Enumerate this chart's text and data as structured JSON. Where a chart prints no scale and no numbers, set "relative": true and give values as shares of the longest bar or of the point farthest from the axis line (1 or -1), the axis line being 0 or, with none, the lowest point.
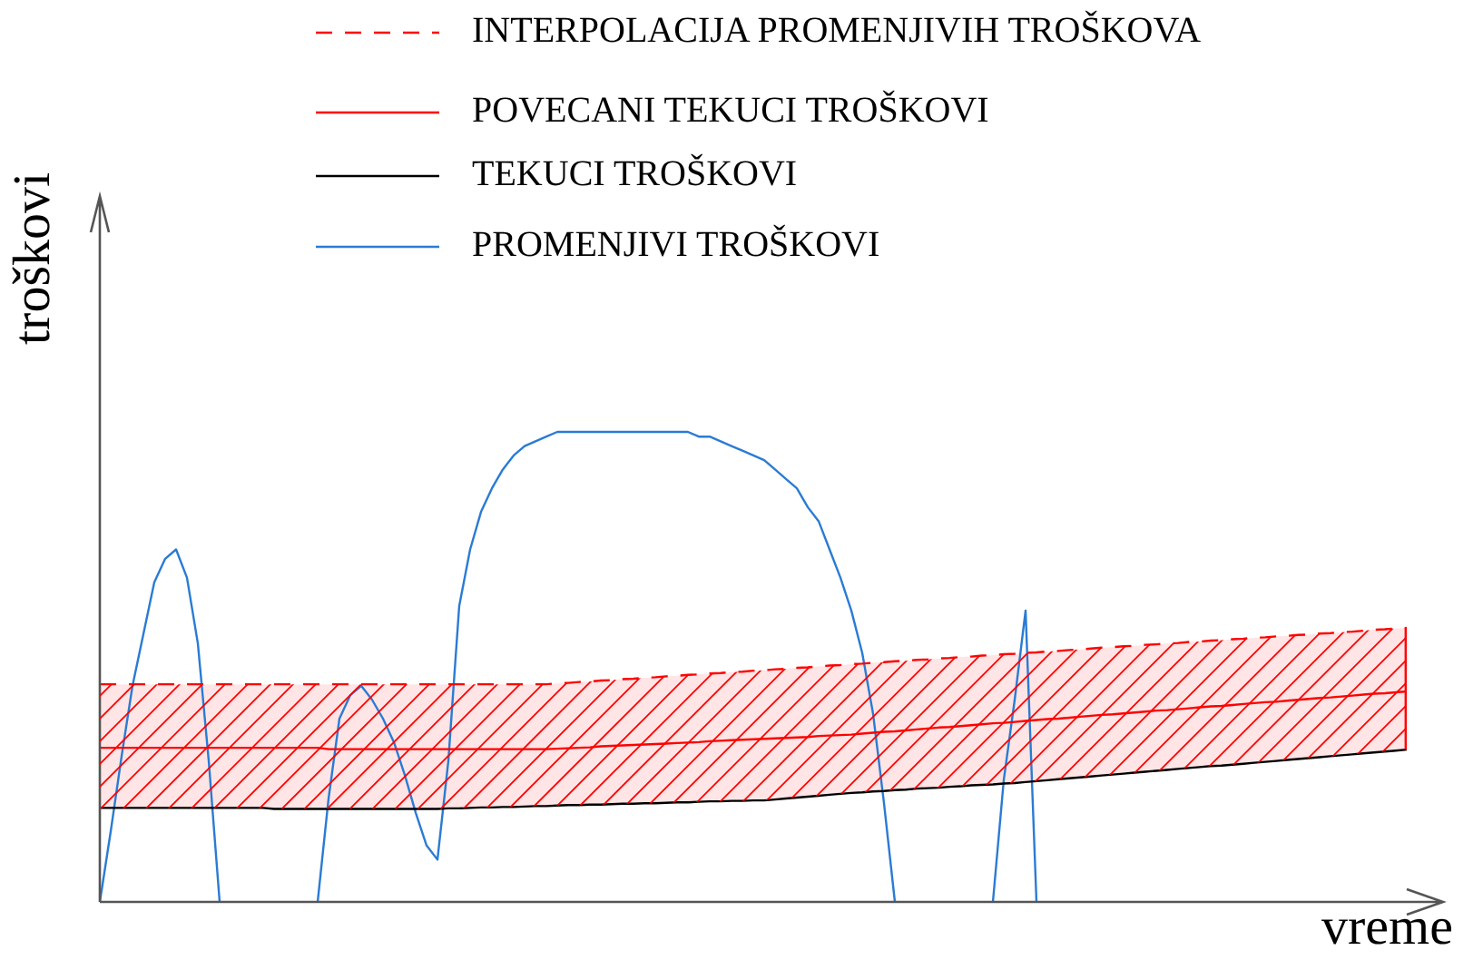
{
  "chart_data": {
    "type": "line",
    "relative": true,
    "xlabel": "vreme",
    "ylabel": "troškovi",
    "legend": "top",
    "marker": "none",
    "categories": [
      null,
      null,
      null,
      null,
      null,
      null,
      null,
      null,
      null,
      null,
      null,
      null,
      null,
      null,
      null,
      null,
      null,
      null,
      null,
      null,
      null,
      null,
      null,
      null,
      null,
      null,
      null,
      null,
      null,
      null,
      null,
      null,
      null,
      null,
      null,
      null,
      null,
      null,
      null,
      null,
      null,
      null,
      null,
      null,
      null,
      null,
      null,
      null,
      null,
      null,
      null,
      null,
      null,
      null,
      null,
      null,
      null,
      null,
      null,
      null,
      null,
      null,
      null,
      null,
      null,
      null,
      null,
      null,
      null,
      null,
      null,
      null,
      null,
      null,
      null,
      null,
      null,
      null,
      null,
      null,
      null,
      null,
      null,
      null,
      null,
      null,
      null,
      null,
      null,
      null,
      null,
      null,
      null,
      null,
      null,
      null,
      null,
      null,
      null,
      null,
      null,
      null,
      null,
      null,
      null,
      null,
      null,
      null,
      null,
      null,
      null,
      null,
      null,
      null,
      null,
      null,
      null,
      null,
      null,
      null,
      null
    ],
    "series": [
      {
        "name": "INTERPOLACIJA PROMENJIVIH TROŠKOVA",
        "color": "#ff0000",
        "line_style": "dashed",
        "values": [
          0.463,
          0.463,
          0.463,
          0.463,
          0.463,
          0.463,
          0.463,
          0.463,
          0.463,
          0.463,
          0.463,
          0.463,
          0.463,
          0.463,
          0.463,
          0.463,
          0.463,
          0.463,
          0.463,
          0.463,
          0.463,
          0.463,
          0.463,
          0.463,
          0.463,
          0.463,
          0.463,
          0.463,
          0.463,
          0.463,
          0.463,
          0.463,
          0.463,
          0.463,
          0.463,
          0.463,
          0.463,
          0.463,
          0.463,
          0.463,
          0.463,
          0.463,
          0.465,
          0.466,
          0.468,
          0.469,
          0.471,
          0.472,
          0.474,
          0.475,
          0.477,
          0.478,
          0.48,
          0.481,
          0.483,
          0.484,
          0.486,
          0.487,
          0.489,
          0.49,
          0.492,
          0.493,
          0.495,
          0.496,
          0.498,
          0.499,
          0.501,
          0.503,
          0.504,
          0.506,
          0.507,
          0.509,
          0.51,
          0.512,
          0.513,
          0.515,
          0.516,
          0.518,
          0.519,
          0.521,
          0.522,
          0.524,
          0.525,
          0.527,
          0.528,
          0.53,
          0.531,
          0.533,
          0.534,
          0.536,
          0.537,
          0.539,
          0.541,
          0.542,
          0.544,
          0.545,
          0.547,
          0.548,
          0.55,
          0.551,
          0.553,
          0.554,
          0.556,
          0.557,
          0.559,
          0.56,
          0.562,
          0.563,
          0.565,
          0.566,
          0.568,
          0.569,
          0.571,
          0.572,
          0.574,
          0.575,
          0.577,
          0.579,
          0.58,
          0.582,
          0.583
        ],
        "lower": [
          0.2,
          0.2,
          0.2,
          0.2,
          0.2,
          0.2,
          0.2,
          0.2,
          0.2,
          0.2,
          0.2,
          0.2,
          0.2,
          0.2,
          0.2,
          0.2,
          0.198,
          0.198,
          0.198,
          0.198,
          0.198,
          0.198,
          0.198,
          0.198,
          0.198,
          0.198,
          0.198,
          0.198,
          0.198,
          0.198,
          0.198,
          0.198,
          0.199,
          0.199,
          0.2,
          0.201,
          0.201,
          0.202,
          0.202,
          0.203,
          0.204,
          0.204,
          0.205,
          0.206,
          0.206,
          0.207,
          0.207,
          0.208,
          0.209,
          0.209,
          0.21,
          0.21,
          0.211,
          0.212,
          0.212,
          0.213,
          0.214,
          0.214,
          0.215,
          0.215,
          0.216,
          0.216,
          0.218,
          0.22,
          0.222,
          0.224,
          0.226,
          0.228,
          0.23,
          0.232,
          0.233,
          0.235,
          0.236,
          0.238,
          0.239,
          0.241,
          0.242,
          0.243,
          0.245,
          0.246,
          0.248,
          0.249,
          0.25,
          0.252,
          0.253,
          0.255,
          0.257,
          0.259,
          0.261,
          0.263,
          0.265,
          0.267,
          0.269,
          0.271,
          0.273,
          0.275,
          0.277,
          0.279,
          0.281,
          0.283,
          0.285,
          0.287,
          0.289,
          0.29,
          0.292,
          0.294,
          0.296,
          0.298,
          0.3,
          0.302,
          0.304,
          0.306,
          0.308,
          0.31,
          0.312,
          0.314,
          0.316,
          0.318,
          0.32,
          0.322,
          0.324
        ],
        "upper": [
          0.463,
          0.463,
          0.463,
          0.463,
          0.463,
          0.463,
          0.463,
          0.463,
          0.463,
          0.463,
          0.463,
          0.463,
          0.463,
          0.463,
          0.463,
          0.463,
          0.463,
          0.463,
          0.463,
          0.463,
          0.463,
          0.463,
          0.463,
          0.463,
          0.463,
          0.463,
          0.463,
          0.463,
          0.463,
          0.463,
          0.463,
          0.463,
          0.463,
          0.463,
          0.463,
          0.463,
          0.463,
          0.463,
          0.463,
          0.463,
          0.463,
          0.463,
          0.465,
          0.466,
          0.468,
          0.469,
          0.471,
          0.472,
          0.474,
          0.475,
          0.477,
          0.478,
          0.48,
          0.481,
          0.483,
          0.484,
          0.486,
          0.487,
          0.489,
          0.49,
          0.492,
          0.493,
          0.495,
          0.496,
          0.498,
          0.499,
          0.501,
          0.503,
          0.504,
          0.506,
          0.507,
          0.509,
          0.51,
          0.512,
          0.513,
          0.515,
          0.516,
          0.518,
          0.519,
          0.521,
          0.522,
          0.524,
          0.525,
          0.527,
          0.528,
          0.53,
          0.531,
          0.533,
          0.534,
          0.536,
          0.537,
          0.539,
          0.541,
          0.542,
          0.544,
          0.545,
          0.547,
          0.548,
          0.55,
          0.551,
          0.553,
          0.554,
          0.556,
          0.557,
          0.559,
          0.56,
          0.562,
          0.563,
          0.565,
          0.566,
          0.568,
          0.569,
          0.571,
          0.572,
          0.574,
          0.575,
          0.577,
          0.579,
          0.58,
          0.582,
          0.583
        ]
      },
      {
        "name": "POVECANI TEKUCI TROŠKOVI",
        "color": "#ff0000",
        "values": [
          0.328,
          0.328,
          0.328,
          0.328,
          0.328,
          0.328,
          0.328,
          0.328,
          0.328,
          0.328,
          0.328,
          0.328,
          0.328,
          0.328,
          0.328,
          0.328,
          0.328,
          0.328,
          0.328,
          0.328,
          0.328,
          0.325,
          0.325,
          0.325,
          0.325,
          0.325,
          0.325,
          0.325,
          0.325,
          0.325,
          0.325,
          0.325,
          0.325,
          0.325,
          0.325,
          0.325,
          0.325,
          0.325,
          0.325,
          0.325,
          0.325,
          0.325,
          0.326,
          0.327,
          0.328,
          0.329,
          0.331,
          0.332,
          0.333,
          0.334,
          0.335,
          0.336,
          0.337,
          0.338,
          0.339,
          0.34,
          0.342,
          0.343,
          0.344,
          0.345,
          0.346,
          0.347,
          0.348,
          0.349,
          0.35,
          0.351,
          0.353,
          0.354,
          0.355,
          0.356,
          0.358,
          0.36,
          0.362,
          0.363,
          0.365,
          0.367,
          0.369,
          0.371,
          0.372,
          0.374,
          0.376,
          0.378,
          0.38,
          0.381,
          0.383,
          0.385,
          0.387,
          0.389,
          0.39,
          0.392,
          0.394,
          0.396,
          0.398,
          0.399,
          0.401,
          0.403,
          0.405,
          0.407,
          0.408,
          0.41,
          0.412,
          0.414,
          0.416,
          0.417,
          0.419,
          0.421,
          0.423,
          0.425,
          0.426,
          0.428,
          0.43,
          0.432,
          0.434,
          0.435,
          0.437,
          0.439,
          0.441,
          0.443,
          0.444,
          0.446,
          0.448
        ]
      },
      {
        "name": "TEKUCI TROŠKOVI",
        "color": "#000000",
        "values": [
          0.2,
          0.2,
          0.2,
          0.2,
          0.2,
          0.2,
          0.2,
          0.2,
          0.2,
          0.2,
          0.2,
          0.2,
          0.2,
          0.2,
          0.2,
          0.2,
          0.198,
          0.198,
          0.198,
          0.198,
          0.198,
          0.198,
          0.198,
          0.198,
          0.198,
          0.198,
          0.198,
          0.198,
          0.198,
          0.198,
          0.198,
          0.198,
          0.199,
          0.199,
          0.2,
          0.201,
          0.201,
          0.202,
          0.202,
          0.203,
          0.204,
          0.204,
          0.205,
          0.206,
          0.206,
          0.207,
          0.207,
          0.208,
          0.209,
          0.209,
          0.21,
          0.21,
          0.211,
          0.212,
          0.212,
          0.213,
          0.214,
          0.214,
          0.215,
          0.215,
          0.216,
          0.216,
          0.218,
          0.22,
          0.222,
          0.224,
          0.226,
          0.228,
          0.23,
          0.232,
          0.233,
          0.235,
          0.236,
          0.238,
          0.239,
          0.241,
          0.242,
          0.243,
          0.245,
          0.246,
          0.248,
          0.249,
          0.25,
          0.252,
          0.253,
          0.255,
          0.257,
          0.259,
          0.261,
          0.263,
          0.265,
          0.267,
          0.269,
          0.271,
          0.273,
          0.275,
          0.277,
          0.279,
          0.281,
          0.283,
          0.285,
          0.287,
          0.289,
          0.29,
          0.292,
          0.294,
          0.296,
          0.298,
          0.3,
          0.302,
          0.304,
          0.306,
          0.308,
          0.31,
          0.312,
          0.314,
          0.316,
          0.318,
          0.32,
          0.322,
          0.324
        ]
      },
      {
        "name": "PROMENJIVI TROŠKOVI",
        "color": "#2a7bd4",
        "values": [
          0,
          0.15,
          0.31,
          0.46,
          0.57,
          0.68,
          0.73,
          0.75,
          0.69,
          0.55,
          0.3,
          0,
          null,
          null,
          null,
          null,
          null,
          null,
          null,
          null,
          0,
          0.22,
          0.39,
          0.44,
          0.46,
          0.43,
          0.39,
          0.34,
          0.27,
          0.19,
          0.12,
          0.09,
          0.3,
          0.63,
          0.75,
          0.83,
          0.88,
          0.92,
          0.95,
          0.97,
          0.98,
          0.99,
          1,
          1,
          1,
          1,
          1,
          1,
          1,
          1,
          1,
          1,
          1,
          1,
          1,
          0.99,
          0.99,
          0.98,
          0.97,
          0.96,
          0.95,
          0.94,
          0.92,
          0.9,
          0.88,
          0.84,
          0.81,
          0.75,
          0.69,
          0.62,
          0.53,
          0.4,
          0.21,
          0,
          null,
          null,
          null,
          null,
          null,
          null,
          null,
          null,
          0,
          0.26,
          0.43,
          0.62,
          0,
          null,
          null,
          null,
          null,
          null,
          null,
          null,
          null,
          null,
          null,
          null,
          null,
          null,
          null,
          null,
          null,
          null,
          null,
          null,
          null,
          null,
          null,
          null,
          null,
          null,
          null,
          null,
          null,
          null,
          null,
          null,
          null,
          null,
          null
        ]
      }
    ]
  }
}
